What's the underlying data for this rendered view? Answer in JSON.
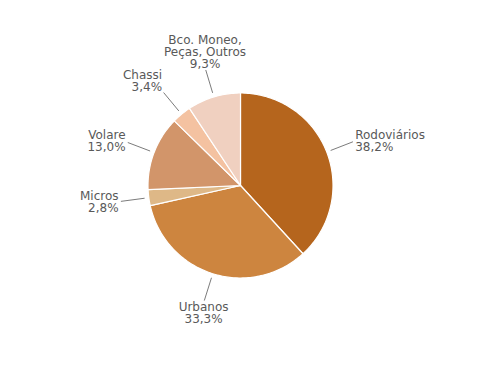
{
  "chart_data": {
    "type": "pie",
    "categories": [
      "Rodoviários",
      "Urbanos",
      "Micros",
      "Volare",
      "Chassi",
      "Bco. Moneo,\nPeças, Outros"
    ],
    "values": [
      38.2,
      33.3,
      2.8,
      13.0,
      3.4,
      9.3
    ],
    "value_labels": [
      "38,2%",
      "33,3%",
      "2,8%",
      "13,0%",
      "3,4%",
      "9,3%"
    ],
    "colors": [
      "#B5651D",
      "#CD853F",
      "#DEB887",
      "#D2956A",
      "#F4C2A1",
      "#F0D0C0"
    ],
    "data_labels": true
  }
}
